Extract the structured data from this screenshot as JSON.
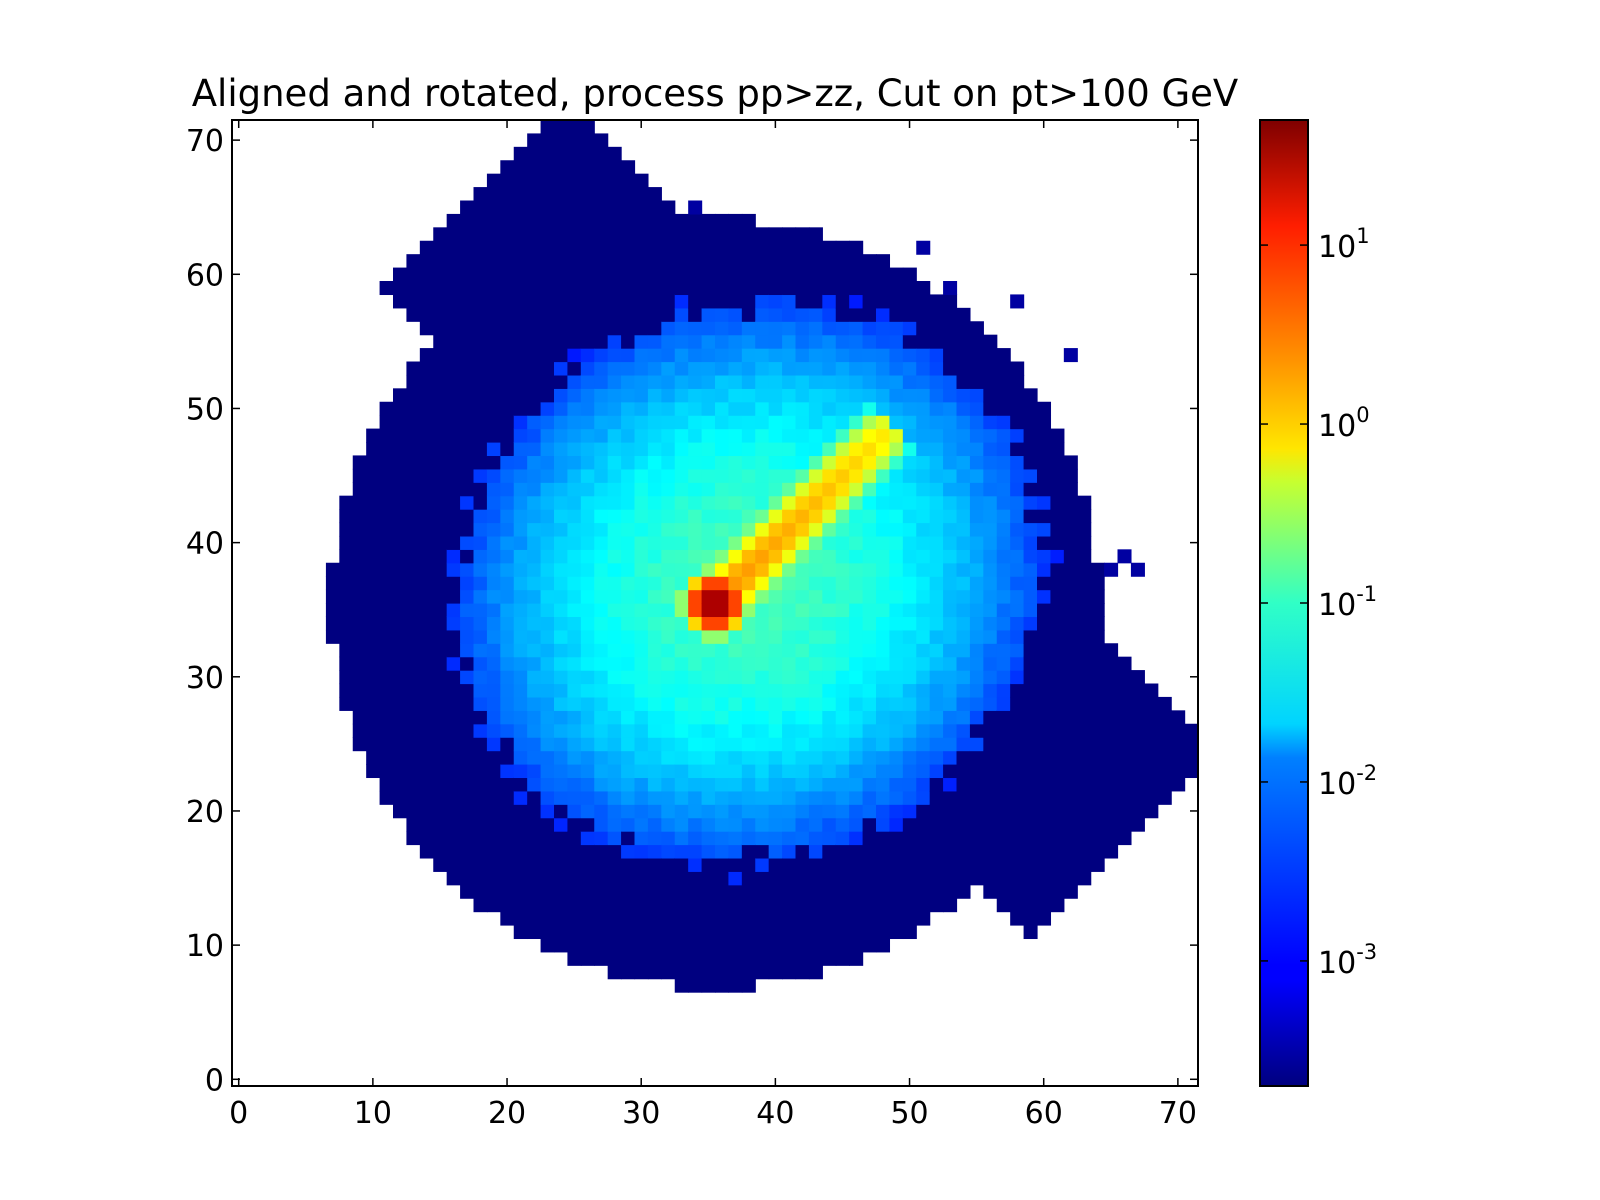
{
  "chart_data": {
    "type": "heatmap",
    "title": "Aligned and rotated, process pp>zz, Cut on pt>100 GeV",
    "xlabel": "",
    "ylabel": "",
    "xlim": [
      -0.5,
      71.5
    ],
    "ylim": [
      -0.5,
      71.5
    ],
    "x_ticks": [
      0,
      10,
      20,
      30,
      40,
      50,
      60,
      70
    ],
    "y_ticks": [
      0,
      10,
      20,
      30,
      40,
      50,
      60,
      70
    ],
    "grid": false,
    "colormap": "jet",
    "color_scale": "log",
    "colorbar": {
      "range": [
        0.0002,
        50
      ],
      "ticks": [
        {
          "value": 0.001,
          "base": "10",
          "exp": "-3"
        },
        {
          "value": 0.01,
          "base": "10",
          "exp": "-2"
        },
        {
          "value": 0.1,
          "base": "10",
          "exp": "-1"
        },
        {
          "value": 1,
          "base": "10",
          "exp": "0"
        },
        {
          "value": 10,
          "base": "10",
          "exp": "1"
        }
      ]
    },
    "distribution": {
      "blob_center": [
        38,
        37
      ],
      "blob_radius_x": 21,
      "blob_radius_y": 21,
      "blob_peak_value": 0.05,
      "core_center": [
        35.5,
        35.5
      ],
      "core_peak_value": 45,
      "streak_start": [
        35.5,
        35.5
      ],
      "streak_end": [
        48,
        48
      ],
      "streak_value": 1.5
    },
    "isolated_pixels": [
      [
        22,
        65
      ],
      [
        34,
        65
      ],
      [
        37,
        63
      ],
      [
        39,
        63
      ],
      [
        41,
        63
      ],
      [
        43,
        62
      ],
      [
        51,
        62
      ],
      [
        27,
        60
      ],
      [
        31,
        59
      ],
      [
        53,
        59
      ],
      [
        58,
        58
      ],
      [
        19,
        53
      ],
      [
        62,
        54
      ],
      [
        21,
        48
      ],
      [
        14,
        46
      ],
      [
        59,
        45
      ],
      [
        61,
        46
      ],
      [
        12,
        39
      ],
      [
        66,
        39
      ],
      [
        65,
        38
      ],
      [
        67,
        38
      ],
      [
        59,
        37
      ],
      [
        62,
        36
      ],
      [
        14,
        27
      ],
      [
        16,
        26
      ],
      [
        14,
        24
      ],
      [
        15,
        24
      ],
      [
        14,
        22
      ],
      [
        19,
        22
      ],
      [
        18,
        28
      ],
      [
        23,
        19
      ],
      [
        28,
        14
      ],
      [
        37,
        13
      ],
      [
        40,
        16
      ],
      [
        42,
        15
      ],
      [
        44,
        14
      ],
      [
        49,
        17
      ],
      [
        49,
        16
      ],
      [
        52,
        22
      ],
      [
        54,
        20
      ],
      [
        55,
        23
      ],
      [
        42,
        10
      ],
      [
        42,
        9
      ]
    ]
  }
}
